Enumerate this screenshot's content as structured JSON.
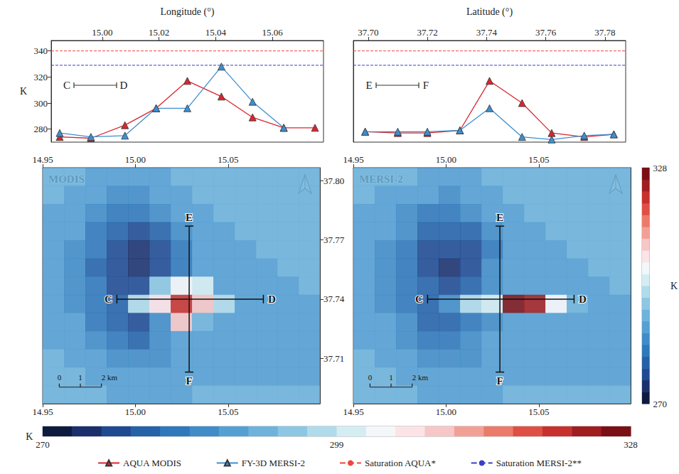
{
  "chart_data": [
    {
      "type": "line",
      "x_label": "Longitude (°)",
      "y_label": "K",
      "xlim": [
        14.982,
        15.078
      ],
      "xticks": [
        {
          "value": 15,
          "label": "15.00"
        },
        15.02,
        15.04,
        15.06
      ],
      "ylim": [
        270,
        348
      ],
      "yticks": [
        280,
        300,
        320,
        340
      ],
      "marker": "triangle",
      "profile": [
        "C",
        "D"
      ],
      "legend": "bottom",
      "series": [
        {
          "name": "AQUA MODIS",
          "color": "#d8262e",
          "x": [
            14.985,
            14.996,
            15.008,
            15.019,
            15.03,
            15.042,
            15.053,
            15.064,
            15.075
          ],
          "values": [
            274,
            273,
            283,
            296,
            317,
            305,
            289,
            281,
            281
          ]
        },
        {
          "name": "FY-3D MERSI-2",
          "color": "#3d8fce",
          "x": [
            14.985,
            14.996,
            15.008,
            15.019,
            15.03,
            15.042,
            15.053,
            15.064
          ],
          "values": [
            277,
            274,
            275,
            296,
            296,
            328,
            301,
            281
          ]
        },
        {
          "name": "Saturation AQUA*",
          "color": "#f0453f",
          "type": "hline",
          "line_style": "dashed",
          "values": [
            340
          ]
        },
        {
          "name": "Saturation MERSI-2**",
          "color": "#3b3fc4",
          "type": "hline",
          "line_style": "dashed",
          "values": [
            329
          ]
        }
      ]
    },
    {
      "type": "line",
      "x_label": "Latitude (°)",
      "xlim": [
        37.695,
        37.787
      ],
      "xticks": [
        {
          "value": 37.7,
          "label": "37.70"
        },
        37.72,
        37.74,
        37.76,
        37.78
      ],
      "ylim": [
        270,
        348
      ],
      "tick_labels": "x",
      "marker": "triangle",
      "profile": [
        "E",
        "F"
      ],
      "series": [
        {
          "name": "AQUA MODIS",
          "color": "#d8262e",
          "x": [
            37.699,
            37.71,
            37.72,
            37.731,
            37.741,
            37.752,
            37.762,
            37.773,
            37.783
          ],
          "values": [
            278,
            277,
            277,
            279,
            317,
            300,
            277,
            274,
            276
          ]
        },
        {
          "name": "FY-3D MERSI-2",
          "color": "#3d8fce",
          "x": [
            37.699,
            37.71,
            37.72,
            37.731,
            37.741,
            37.752,
            37.762,
            37.773,
            37.783
          ],
          "values": [
            278,
            278,
            278,
            279,
            296,
            274,
            272,
            275,
            276
          ]
        },
        {
          "name": "Saturation AQUA*",
          "color": "#f0453f",
          "type": "hline",
          "line_style": "dashed",
          "values": [
            340
          ]
        },
        {
          "name": "Saturation MERSI-2**",
          "color": "#3b3fc4",
          "type": "hline",
          "line_style": "dashed",
          "values": [
            329
          ]
        }
      ]
    },
    {
      "type": "heatmap",
      "title": "MODIS",
      "xlim": [
        14.95,
        15.0995
      ],
      "xticks": [
        14.95,
        {
          "value": 15,
          "label": "15.00"
        },
        15.05
      ],
      "ylim": [
        37.687,
        37.8066
      ],
      "yticks": [
        37.71,
        37.74,
        37.77,
        {
          "value": 37.8,
          "label": "37.80"
        }
      ],
      "lon_edges": [
        14.95,
        14.9615,
        14.973,
        14.9845,
        14.996,
        15.0075,
        15.019,
        15.0305,
        15.042,
        15.0535,
        15.065,
        15.0765,
        15.088,
        15.0995
      ],
      "lat_edges": [
        37.687,
        37.6962,
        37.7054,
        37.7146,
        37.7238,
        37.733,
        37.7422,
        37.7514,
        37.7606,
        37.7698,
        37.779,
        37.7882,
        37.7974,
        37.8066
      ],
      "cells": [
        [
          291,
          291,
          290,
          290,
          289,
          290,
          291,
          291,
          291,
          292,
          292,
          292,
          292
        ],
        [
          291,
          290,
          289,
          287,
          286,
          288,
          290,
          291,
          291,
          292,
          292,
          292,
          292
        ],
        [
          290,
          289,
          286,
          284,
          283,
          285,
          288,
          290,
          291,
          291,
          292,
          292,
          291
        ],
        [
          290,
          288,
          284,
          280,
          278,
          281,
          285,
          289,
          290,
          291,
          291,
          291,
          291
        ],
        [
          289,
          287,
          282,
          277,
          275,
          278,
          283,
          288,
          290,
          290,
          291,
          291,
          291
        ],
        [
          289,
          286,
          281,
          276,
          274,
          277,
          284,
          289,
          290,
          290,
          290,
          291,
          291
        ],
        [
          289,
          286,
          282,
          278,
          276,
          296,
          302,
          299,
          290,
          290,
          290,
          290,
          291
        ],
        [
          289,
          287,
          283,
          279,
          297,
          306,
          320,
          310,
          298,
          290,
          290,
          290,
          290
        ],
        [
          290,
          288,
          284,
          280,
          278,
          286,
          308,
          293,
          289,
          290,
          290,
          290,
          290
        ],
        [
          290,
          289,
          286,
          282,
          281,
          285,
          288,
          289,
          289,
          290,
          290,
          290,
          290
        ],
        [
          291,
          290,
          288,
          287,
          286,
          287,
          288,
          289,
          290,
          290,
          290,
          290,
          290
        ],
        [
          291,
          291,
          290,
          289,
          289,
          289,
          289,
          290,
          290,
          290,
          290,
          290,
          290
        ],
        [
          291,
          291,
          291,
          290,
          290,
          290,
          290,
          291,
          291,
          291,
          291,
          291,
          291
        ]
      ],
      "transects": [
        {
          "start": "C",
          "end": "D",
          "from": [
            14.99,
            37.74
          ],
          "to": [
            15.069,
            37.74
          ]
        },
        {
          "start": "E",
          "end": "F",
          "from": [
            15.029,
            37.777
          ],
          "to": [
            15.029,
            37.703
          ]
        }
      ],
      "scale_bar": {
        "values": [
          0,
          1,
          2
        ],
        "labels": [
          "0",
          "1",
          "2 km"
        ]
      }
    },
    {
      "type": "heatmap",
      "title": "MERSI-2",
      "xlim": [
        14.95,
        15.0995
      ],
      "xticks": [
        14.95,
        {
          "value": 15,
          "label": "15.00"
        },
        15.05
      ],
      "ylim": [
        37.687,
        37.8066
      ],
      "tick_labels": "x",
      "lon_edges": [
        14.95,
        14.9615,
        14.973,
        14.9845,
        14.996,
        15.0075,
        15.019,
        15.0305,
        15.042,
        15.0535,
        15.065,
        15.0765,
        15.088,
        15.0995
      ],
      "lat_edges": [
        37.687,
        37.6962,
        37.7054,
        37.7146,
        37.7238,
        37.733,
        37.7422,
        37.7514,
        37.7606,
        37.7698,
        37.779,
        37.7882,
        37.7974,
        37.8066
      ],
      "cells": [
        [
          291,
          291,
          291,
          290,
          290,
          290,
          291,
          291,
          291,
          292,
          292,
          292,
          292
        ],
        [
          291,
          290,
          289,
          288,
          287,
          288,
          290,
          291,
          291,
          292,
          292,
          292,
          292
        ],
        [
          290,
          289,
          287,
          284,
          283,
          285,
          288,
          290,
          291,
          291,
          292,
          292,
          291
        ],
        [
          290,
          288,
          285,
          281,
          279,
          281,
          286,
          289,
          290,
          291,
          291,
          291,
          291
        ],
        [
          289,
          287,
          283,
          278,
          276,
          278,
          284,
          288,
          290,
          290,
          291,
          291,
          291
        ],
        [
          289,
          287,
          282,
          277,
          275,
          278,
          285,
          289,
          290,
          290,
          290,
          291,
          291
        ],
        [
          289,
          287,
          283,
          279,
          277,
          281,
          287,
          289,
          290,
          290,
          290,
          290,
          291
        ],
        [
          289,
          287,
          284,
          281,
          285,
          297,
          300,
          328,
          323,
          302,
          291,
          290,
          290
        ],
        [
          290,
          288,
          285,
          281,
          279,
          283,
          287,
          289,
          289,
          290,
          290,
          290,
          290
        ],
        [
          290,
          289,
          286,
          283,
          282,
          285,
          288,
          289,
          289,
          290,
          290,
          290,
          290
        ],
        [
          291,
          290,
          288,
          287,
          286,
          287,
          288,
          289,
          290,
          290,
          290,
          290,
          290
        ],
        [
          291,
          291,
          290,
          289,
          289,
          289,
          289,
          290,
          290,
          290,
          290,
          290,
          290
        ],
        [
          291,
          291,
          291,
          290,
          290,
          290,
          290,
          291,
          291,
          291,
          291,
          291,
          291
        ]
      ],
      "transects": [
        {
          "start": "C",
          "end": "D",
          "from": [
            14.99,
            37.74
          ],
          "to": [
            15.069,
            37.74
          ]
        },
        {
          "start": "E",
          "end": "F",
          "from": [
            15.029,
            37.777
          ],
          "to": [
            15.029,
            37.703
          ]
        }
      ],
      "scale_bar": {
        "values": [
          0,
          1,
          2
        ],
        "labels": [
          "0",
          "1",
          "2 km"
        ]
      }
    }
  ],
  "colorbar": {
    "range": [
      270,
      328
    ],
    "ticks": [
      270,
      299,
      328
    ],
    "label": "K"
  }
}
